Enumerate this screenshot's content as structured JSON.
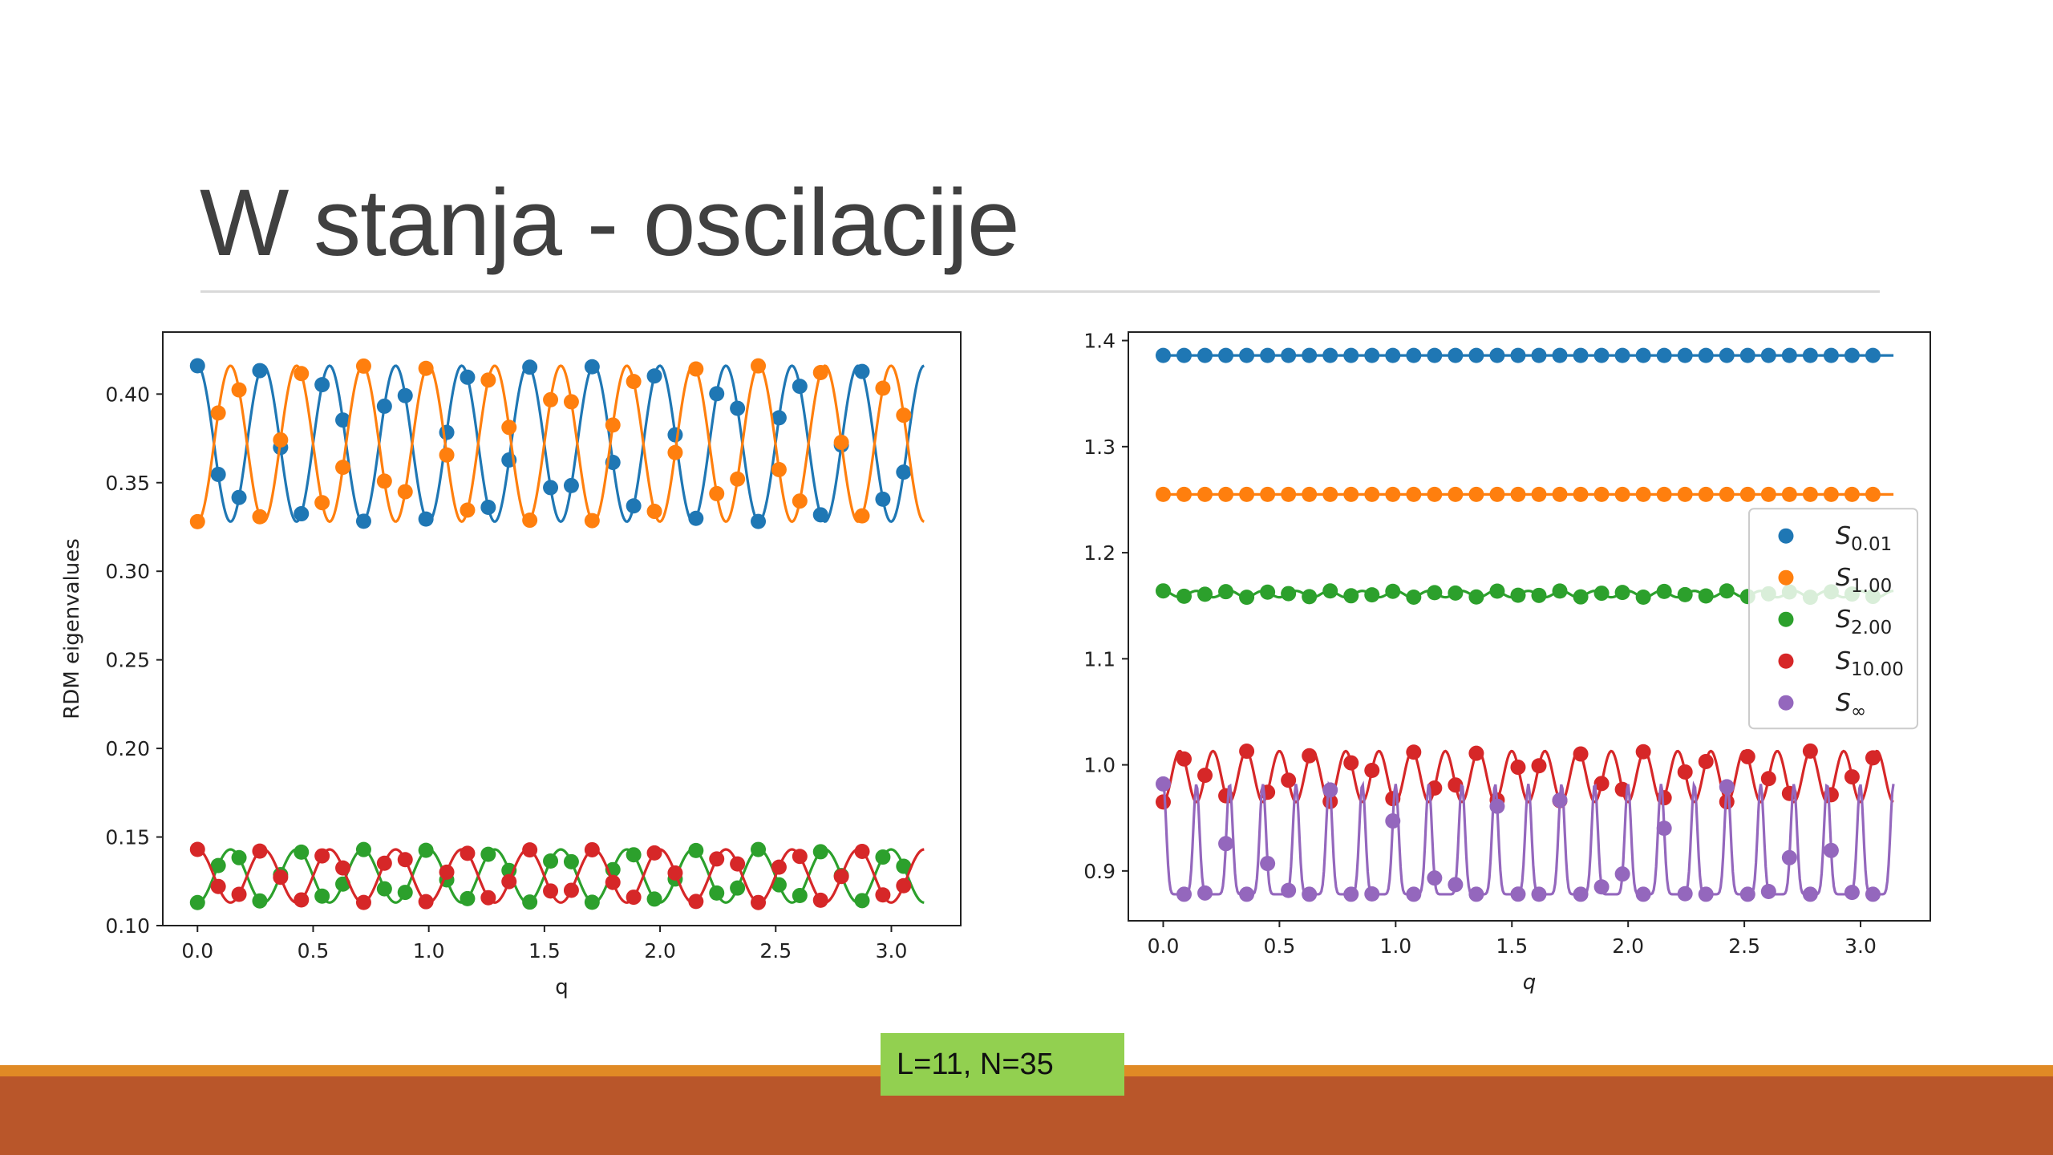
{
  "slide": {
    "title": "W stanja - oscilacije",
    "info_box": "L=11, N=35"
  },
  "colors": {
    "blue": "#1f77b4",
    "orange": "#ff7f0e",
    "green": "#2ca02c",
    "red": "#d62728",
    "purple": "#9467bd",
    "title": "#404040",
    "footer_orange": "#e08a25",
    "footer_rust": "#b9562a",
    "info_box": "#92d050"
  },
  "chart_data": [
    {
      "type": "line",
      "title": "",
      "xlabel": "q",
      "ylabel": "RDM eigenvalues",
      "xlim": [
        -0.15,
        3.3
      ],
      "ylim": [
        0.1,
        0.435
      ],
      "xticks": [
        "0.0",
        "0.5",
        "1.0",
        "1.5",
        "2.0",
        "2.5",
        "3.0"
      ],
      "yticks": [
        "0.10",
        "0.15",
        "0.20",
        "0.25",
        "0.30",
        "0.35",
        "0.40"
      ],
      "legend": "none",
      "series": [
        {
          "color": "blue",
          "curve": {
            "type": "cos",
            "q_max": 3.14159,
            "mean": 0.372,
            "amplitude": 0.044,
            "frequency": 22.0,
            "phase": 0.0
          }
        },
        {
          "color": "orange",
          "curve": {
            "type": "cos",
            "q_max": 3.14159,
            "mean": 0.372,
            "amplitude": 0.044,
            "frequency": 22.0,
            "phase": 3.14159
          }
        },
        {
          "color": "green",
          "curve": {
            "type": "cos",
            "q_max": 3.14159,
            "mean": 0.128,
            "amplitude": 0.015,
            "frequency": 22.0,
            "phase": 3.14159
          }
        },
        {
          "color": "red",
          "curve": {
            "type": "cos",
            "q_max": 3.14159,
            "mean": 0.128,
            "amplitude": 0.015,
            "frequency": 22.0,
            "phase": 0.0
          }
        }
      ],
      "marker_q_step": 0.0898
    },
    {
      "type": "line",
      "title": "",
      "xlabel": "q",
      "ylabel": "",
      "xlim": [
        -0.15,
        3.3
      ],
      "ylim": [
        0.853,
        1.408
      ],
      "xticks": [
        "0.0",
        "0.5",
        "1.0",
        "1.5",
        "2.0",
        "2.5",
        "3.0"
      ],
      "yticks": [
        "0.9",
        "1.0",
        "1.1",
        "1.2",
        "1.3",
        "1.4"
      ],
      "legend": "center-right",
      "series": [
        {
          "name": "0.01",
          "color": "blue",
          "curve": {
            "type": "const",
            "q_max": 3.14159,
            "value": 1.386
          }
        },
        {
          "name": "1.00",
          "color": "orange",
          "curve": {
            "type": "const",
            "q_max": 3.14159,
            "value": 1.255
          }
        },
        {
          "name": "2.00",
          "color": "green",
          "curve": {
            "type": "cos",
            "q_max": 3.14159,
            "mean": 1.161,
            "amplitude": 0.003,
            "frequency": 44.0,
            "phase": 0.0
          }
        },
        {
          "name": "10.00",
          "color": "red",
          "curve": {
            "type": "cos",
            "q_max": 3.14159,
            "mean": 0.989,
            "amplitude": 0.024,
            "frequency": 44.0,
            "phase": 3.14159
          }
        },
        {
          "name": "∞",
          "color": "purple",
          "curve": {
            "type": "peaks",
            "q_max": 3.14159,
            "base": 0.878,
            "peak": 0.982,
            "frequency": 44.0,
            "sharpness": 6
          }
        }
      ],
      "marker_q_step": 0.0898
    }
  ]
}
